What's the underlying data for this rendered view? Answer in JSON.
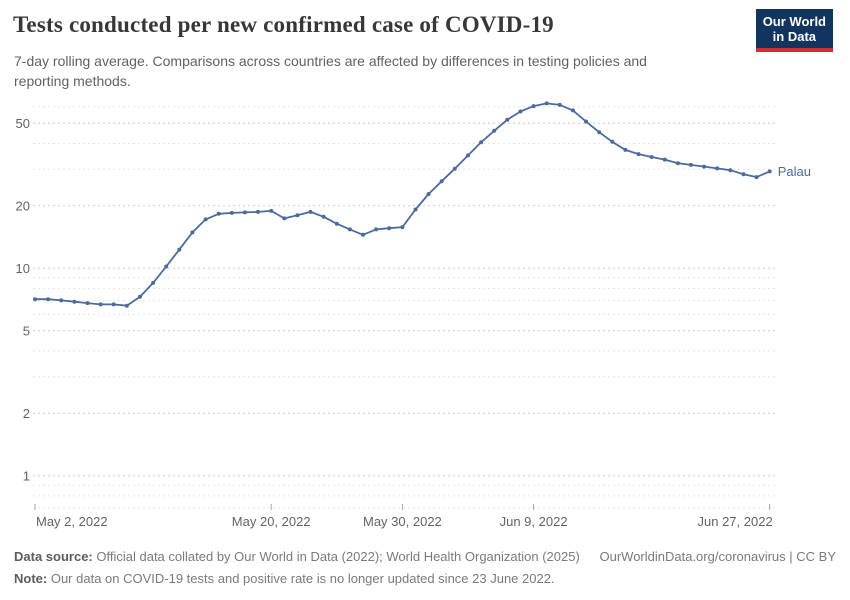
{
  "logo": {
    "line1": "Our World",
    "line2": "in Data"
  },
  "chart_data": {
    "type": "line",
    "title": "Tests conducted per new confirmed case of COVID-19",
    "subtitle": "7-day rolling average. Comparisons across countries are affected by differences in testing policies and reporting methods.",
    "y_scale": "log",
    "ylim": [
      0.65,
      65
    ],
    "grid": true,
    "y_ticks_labeled": [
      1,
      2,
      5,
      10,
      20,
      50
    ],
    "y_gridlines_minor": [
      0.7,
      0.8,
      0.9,
      3,
      4,
      6,
      7,
      8,
      9,
      30,
      40,
      60
    ],
    "x_ticks": [
      {
        "label": "May 2, 2022",
        "day": 0,
        "align": "start"
      },
      {
        "label": "May 20, 2022",
        "day": 18,
        "align": "middle"
      },
      {
        "label": "May 30, 2022",
        "day": 28,
        "align": "middle"
      },
      {
        "label": "Jun 9, 2022",
        "day": 38,
        "align": "middle"
      },
      {
        "label": "Jun 27, 2022",
        "day": 56,
        "align": "end"
      }
    ],
    "legend_position": "end-of-line-label",
    "series": [
      {
        "name": "Palau",
        "color": "#4c6a9c",
        "dates": [
          "2022-05-02",
          "2022-05-03",
          "2022-05-04",
          "2022-05-05",
          "2022-05-06",
          "2022-05-07",
          "2022-05-08",
          "2022-05-09",
          "2022-05-10",
          "2022-05-11",
          "2022-05-12",
          "2022-05-13",
          "2022-05-14",
          "2022-05-15",
          "2022-05-16",
          "2022-05-17",
          "2022-05-18",
          "2022-05-19",
          "2022-05-20",
          "2022-05-21",
          "2022-05-22",
          "2022-05-23",
          "2022-05-24",
          "2022-05-25",
          "2022-05-26",
          "2022-05-27",
          "2022-05-28",
          "2022-05-29",
          "2022-05-30",
          "2022-05-31",
          "2022-06-01",
          "2022-06-02",
          "2022-06-03",
          "2022-06-04",
          "2022-06-05",
          "2022-06-06",
          "2022-06-07",
          "2022-06-08",
          "2022-06-09",
          "2022-06-10",
          "2022-06-11",
          "2022-06-12",
          "2022-06-13",
          "2022-06-14",
          "2022-06-15",
          "2022-06-16",
          "2022-06-17",
          "2022-06-18",
          "2022-06-19",
          "2022-06-20",
          "2022-06-21",
          "2022-06-22",
          "2022-06-23",
          "2022-06-24",
          "2022-06-25",
          "2022-06-26",
          "2022-06-27"
        ],
        "values": [
          7.1,
          7.1,
          7.0,
          6.9,
          6.8,
          6.7,
          6.7,
          6.6,
          7.3,
          8.5,
          10.2,
          12.3,
          14.9,
          17.2,
          18.3,
          18.5,
          18.6,
          18.7,
          18.9,
          17.4,
          18.0,
          18.7,
          17.7,
          16.4,
          15.4,
          14.5,
          15.4,
          15.6,
          15.8,
          19.2,
          22.8,
          26.3,
          30.2,
          35.0,
          40.5,
          46.0,
          52.0,
          57.0,
          60.5,
          62.3,
          61.3,
          57.7,
          51.0,
          45.3,
          40.7,
          37.2,
          35.5,
          34.4,
          33.4,
          32.1,
          31.5,
          30.9,
          30.3,
          29.7,
          28.4,
          27.5,
          29.3
        ]
      }
    ]
  },
  "footer": {
    "source_label": "Data source:",
    "source_text": "Official data collated by Our World in Data (2022); World Health Organization (2025)",
    "credit": "OurWorldinData.org/coronavirus | CC BY",
    "note_label": "Note:",
    "note_text": "Our data on COVID-19 tests and positive rate is no longer updated since 23 June 2022."
  }
}
